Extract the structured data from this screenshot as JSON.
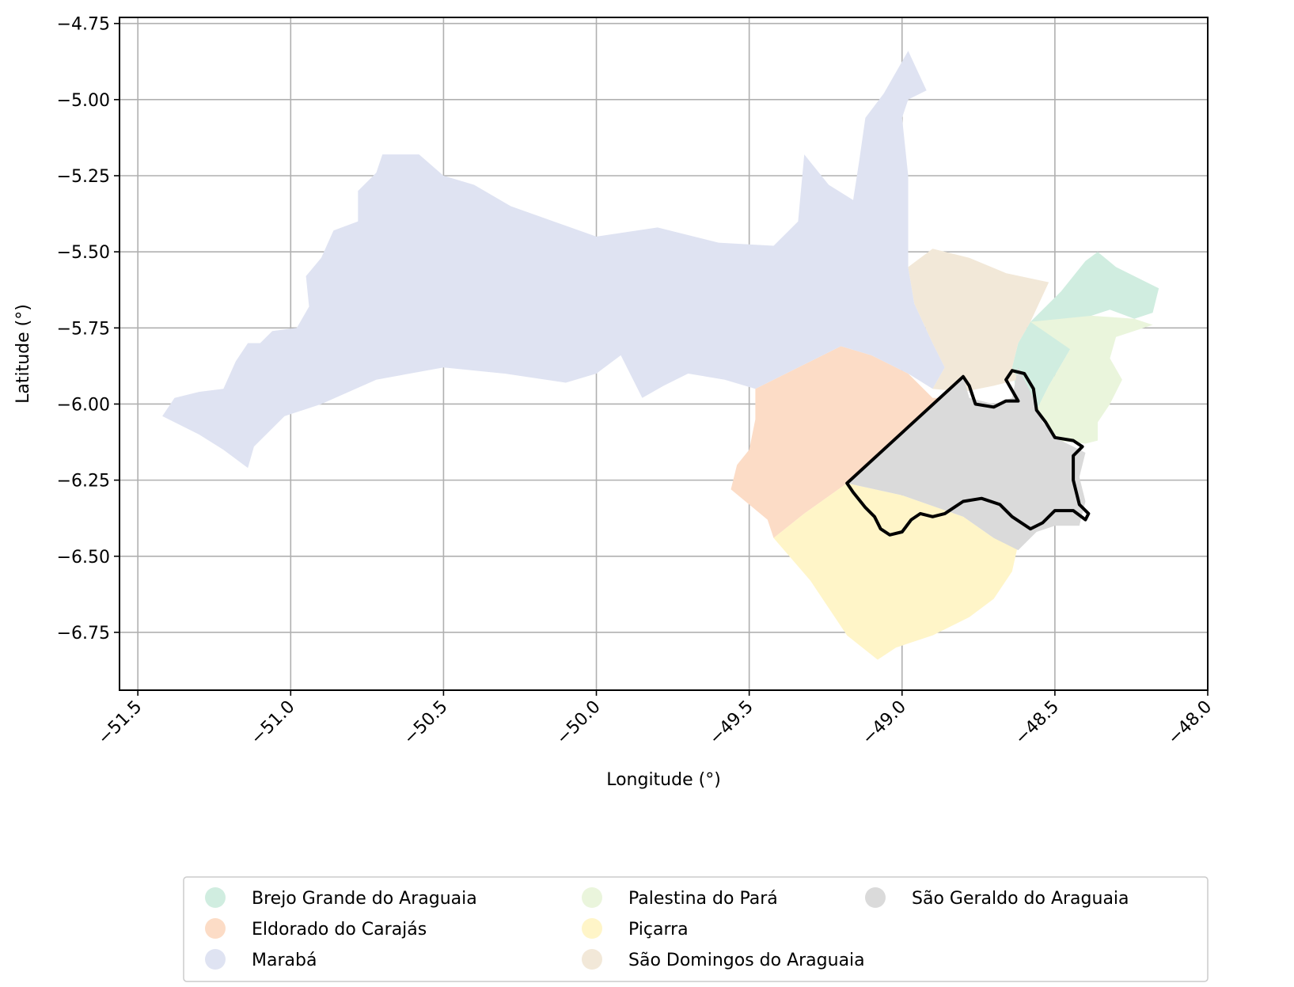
{
  "chart_data": {
    "type": "map",
    "xlabel": "Longitude (°)",
    "ylabel": "Latitude (°)",
    "xlim": [
      -51.56,
      -48.0
    ],
    "ylim": [
      -6.94,
      -4.73
    ],
    "grid": true,
    "x_ticks": [
      -51.5,
      -51.0,
      -50.5,
      -50.0,
      -49.5,
      -49.0,
      -48.5,
      -48.0
    ],
    "x_tick_labels": [
      "−51.5",
      "−51.0",
      "−50.5",
      "−50.0",
      "−49.5",
      "−49.0",
      "−48.5",
      "−48.0"
    ],
    "y_ticks": [
      -4.75,
      -5.0,
      -5.25,
      -5.5,
      -5.75,
      -6.0,
      -6.25,
      -6.5,
      -6.75
    ],
    "y_tick_labels": [
      "−4.75",
      "−5.00",
      "−5.25",
      "−5.50",
      "−5.75",
      "−6.00",
      "−6.25",
      "−6.50",
      "−6.75"
    ],
    "legend_position": "bottom-center",
    "regions": [
      {
        "name": "Brejo Grande do Araguaia",
        "color": "#d0ede0",
        "outline": [
          [
            -48.58,
            -5.73
          ],
          [
            -48.48,
            -5.63
          ],
          [
            -48.4,
            -5.53
          ],
          [
            -48.36,
            -5.5
          ],
          [
            -48.3,
            -5.55
          ],
          [
            -48.2,
            -5.6
          ],
          [
            -48.16,
            -5.62
          ],
          [
            -48.18,
            -5.7
          ],
          [
            -48.24,
            -5.72
          ],
          [
            -48.32,
            -5.69
          ],
          [
            -48.38,
            -5.71
          ],
          [
            -48.45,
            -5.82
          ],
          [
            -48.52,
            -5.94
          ],
          [
            -48.56,
            -6.02
          ],
          [
            -48.62,
            -6.0
          ],
          [
            -48.64,
            -5.88
          ],
          [
            -48.62,
            -5.8
          ]
        ]
      },
      {
        "name": "Eldorado do Carajás",
        "color": "#fcdcc6",
        "outline": [
          [
            -49.48,
            -5.95
          ],
          [
            -49.3,
            -5.86
          ],
          [
            -49.2,
            -5.81
          ],
          [
            -49.1,
            -5.84
          ],
          [
            -48.98,
            -5.9
          ],
          [
            -48.9,
            -5.98
          ],
          [
            -48.82,
            -5.98
          ],
          [
            -49.18,
            -6.26
          ],
          [
            -49.32,
            -6.36
          ],
          [
            -49.42,
            -6.44
          ],
          [
            -49.44,
            -6.38
          ],
          [
            -49.5,
            -6.33
          ],
          [
            -49.56,
            -6.28
          ],
          [
            -49.54,
            -6.2
          ],
          [
            -49.5,
            -6.15
          ],
          [
            -49.48,
            -6.05
          ]
        ]
      },
      {
        "name": "Marabá",
        "color": "#dfe3f2",
        "outline": [
          [
            -51.42,
            -6.04
          ],
          [
            -51.38,
            -5.98
          ],
          [
            -51.3,
            -5.96
          ],
          [
            -51.22,
            -5.95
          ],
          [
            -51.18,
            -5.86
          ],
          [
            -51.14,
            -5.8
          ],
          [
            -51.1,
            -5.8
          ],
          [
            -51.06,
            -5.76
          ],
          [
            -50.98,
            -5.75
          ],
          [
            -50.94,
            -5.68
          ],
          [
            -50.95,
            -5.58
          ],
          [
            -50.9,
            -5.52
          ],
          [
            -50.86,
            -5.43
          ],
          [
            -50.78,
            -5.4
          ],
          [
            -50.78,
            -5.3
          ],
          [
            -50.72,
            -5.24
          ],
          [
            -50.7,
            -5.18
          ],
          [
            -50.58,
            -5.18
          ],
          [
            -50.5,
            -5.25
          ],
          [
            -50.4,
            -5.28
          ],
          [
            -50.28,
            -5.35
          ],
          [
            -50.14,
            -5.4
          ],
          [
            -50.0,
            -5.45
          ],
          [
            -49.8,
            -5.42
          ],
          [
            -49.6,
            -5.47
          ],
          [
            -49.42,
            -5.48
          ],
          [
            -49.34,
            -5.4
          ],
          [
            -49.32,
            -5.18
          ],
          [
            -49.24,
            -5.28
          ],
          [
            -49.16,
            -5.33
          ],
          [
            -49.14,
            -5.2
          ],
          [
            -49.12,
            -5.06
          ],
          [
            -49.06,
            -4.98
          ],
          [
            -48.98,
            -4.84
          ],
          [
            -48.92,
            -4.97
          ],
          [
            -48.98,
            -5.0
          ],
          [
            -49.0,
            -5.06
          ],
          [
            -48.98,
            -5.25
          ],
          [
            -48.98,
            -5.4
          ],
          [
            -48.98,
            -5.55
          ],
          [
            -48.96,
            -5.67
          ],
          [
            -48.9,
            -5.8
          ],
          [
            -48.86,
            -5.88
          ],
          [
            -48.9,
            -5.95
          ],
          [
            -48.98,
            -5.9
          ],
          [
            -49.1,
            -5.84
          ],
          [
            -49.2,
            -5.81
          ],
          [
            -49.3,
            -5.86
          ],
          [
            -49.48,
            -5.95
          ],
          [
            -49.58,
            -5.92
          ],
          [
            -49.7,
            -5.9
          ],
          [
            -49.78,
            -5.94
          ],
          [
            -49.85,
            -5.98
          ],
          [
            -49.92,
            -5.84
          ],
          [
            -50.0,
            -5.9
          ],
          [
            -50.1,
            -5.93
          ],
          [
            -50.3,
            -5.9
          ],
          [
            -50.5,
            -5.88
          ],
          [
            -50.72,
            -5.92
          ],
          [
            -50.9,
            -6.0
          ],
          [
            -51.02,
            -6.04
          ],
          [
            -51.12,
            -6.14
          ],
          [
            -51.14,
            -6.21
          ],
          [
            -51.22,
            -6.15
          ],
          [
            -51.3,
            -6.1
          ]
        ]
      },
      {
        "name": "Palestina do Pará",
        "color": "#eaf5dc",
        "outline": [
          [
            -48.58,
            -5.73
          ],
          [
            -48.38,
            -5.71
          ],
          [
            -48.24,
            -5.72
          ],
          [
            -48.18,
            -5.74
          ],
          [
            -48.3,
            -5.78
          ],
          [
            -48.32,
            -5.85
          ],
          [
            -48.28,
            -5.92
          ],
          [
            -48.32,
            -6.0
          ],
          [
            -48.36,
            -6.06
          ],
          [
            -48.36,
            -6.12
          ],
          [
            -48.4,
            -6.13
          ],
          [
            -48.5,
            -6.12
          ],
          [
            -48.56,
            -6.02
          ],
          [
            -48.52,
            -5.94
          ],
          [
            -48.45,
            -5.82
          ]
        ]
      },
      {
        "name": "Piçarra",
        "color": "#fff5c8",
        "outline": [
          [
            -49.42,
            -6.44
          ],
          [
            -49.32,
            -6.36
          ],
          [
            -49.18,
            -6.26
          ],
          [
            -49.0,
            -6.3
          ],
          [
            -48.8,
            -6.37
          ],
          [
            -48.7,
            -6.44
          ],
          [
            -48.62,
            -6.46
          ],
          [
            -48.64,
            -6.55
          ],
          [
            -48.7,
            -6.64
          ],
          [
            -48.78,
            -6.7
          ],
          [
            -48.9,
            -6.76
          ],
          [
            -49.02,
            -6.8
          ],
          [
            -49.08,
            -6.84
          ],
          [
            -49.18,
            -6.76
          ],
          [
            -49.3,
            -6.58
          ]
        ]
      },
      {
        "name": "São Domingos do Araguaia",
        "color": "#f2e8d8",
        "outline": [
          [
            -48.9,
            -5.95
          ],
          [
            -48.86,
            -5.88
          ],
          [
            -48.9,
            -5.8
          ],
          [
            -48.96,
            -5.67
          ],
          [
            -48.98,
            -5.55
          ],
          [
            -48.9,
            -5.49
          ],
          [
            -48.78,
            -5.52
          ],
          [
            -48.66,
            -5.57
          ],
          [
            -48.52,
            -5.6
          ],
          [
            -48.58,
            -5.73
          ],
          [
            -48.62,
            -5.8
          ],
          [
            -48.64,
            -5.88
          ],
          [
            -48.62,
            -5.92
          ],
          [
            -48.7,
            -5.94
          ],
          [
            -48.8,
            -5.96
          ]
        ]
      },
      {
        "name": "São Geraldo do Araguaia",
        "color": "#dadada",
        "outline": [
          [
            -49.18,
            -6.26
          ],
          [
            -48.8,
            -5.91
          ],
          [
            -48.78,
            -5.98
          ],
          [
            -48.7,
            -6.0
          ],
          [
            -48.64,
            -5.98
          ],
          [
            -48.62,
            -5.88
          ],
          [
            -48.58,
            -5.96
          ],
          [
            -48.54,
            -6.06
          ],
          [
            -48.48,
            -6.12
          ],
          [
            -48.44,
            -6.14
          ],
          [
            -48.4,
            -6.16
          ],
          [
            -48.42,
            -6.24
          ],
          [
            -48.4,
            -6.32
          ],
          [
            -48.42,
            -6.4
          ],
          [
            -48.5,
            -6.4
          ],
          [
            -48.56,
            -6.42
          ],
          [
            -48.62,
            -6.48
          ],
          [
            -48.7,
            -6.44
          ],
          [
            -48.8,
            -6.37
          ],
          [
            -49.0,
            -6.3
          ]
        ]
      }
    ],
    "highlight": {
      "name": "São Geraldo do Araguaia",
      "outline": [
        [
          -49.18,
          -6.26
        ],
        [
          -48.8,
          -5.91
        ],
        [
          -48.78,
          -5.94
        ],
        [
          -48.76,
          -6.0
        ],
        [
          -48.7,
          -6.01
        ],
        [
          -48.66,
          -5.99
        ],
        [
          -48.62,
          -5.99
        ],
        [
          -48.66,
          -5.92
        ],
        [
          -48.64,
          -5.89
        ],
        [
          -48.6,
          -5.9
        ],
        [
          -48.57,
          -5.95
        ],
        [
          -48.56,
          -6.02
        ],
        [
          -48.53,
          -6.06
        ],
        [
          -48.5,
          -6.11
        ],
        [
          -48.44,
          -6.12
        ],
        [
          -48.41,
          -6.14
        ],
        [
          -48.44,
          -6.17
        ],
        [
          -48.44,
          -6.25
        ],
        [
          -48.42,
          -6.33
        ],
        [
          -48.39,
          -6.36
        ],
        [
          -48.4,
          -6.38
        ],
        [
          -48.44,
          -6.35
        ],
        [
          -48.5,
          -6.35
        ],
        [
          -48.54,
          -6.39
        ],
        [
          -48.58,
          -6.41
        ],
        [
          -48.64,
          -6.37
        ],
        [
          -48.68,
          -6.33
        ],
        [
          -48.74,
          -6.31
        ],
        [
          -48.8,
          -6.32
        ],
        [
          -48.83,
          -6.34
        ],
        [
          -48.86,
          -6.36
        ],
        [
          -48.9,
          -6.37
        ],
        [
          -48.94,
          -6.36
        ],
        [
          -48.97,
          -6.38
        ],
        [
          -49.0,
          -6.42
        ],
        [
          -49.04,
          -6.43
        ],
        [
          -49.07,
          -6.41
        ],
        [
          -49.09,
          -6.37
        ],
        [
          -49.12,
          -6.34
        ],
        [
          -49.16,
          -6.29
        ]
      ]
    },
    "legend_entries": [
      {
        "name": "Brejo Grande do Araguaia",
        "color": "#d0ede0"
      },
      {
        "name": "Eldorado do Carajás",
        "color": "#fcdcc6"
      },
      {
        "name": "Marabá",
        "color": "#dfe3f2"
      },
      {
        "name": "Palestina do Pará",
        "color": "#eaf5dc"
      },
      {
        "name": "Piçarra",
        "color": "#fff5c8"
      },
      {
        "name": "São Domingos do Araguaia",
        "color": "#f2e8d8"
      },
      {
        "name": "São Geraldo do Araguaia",
        "color": "#dadada"
      }
    ]
  }
}
